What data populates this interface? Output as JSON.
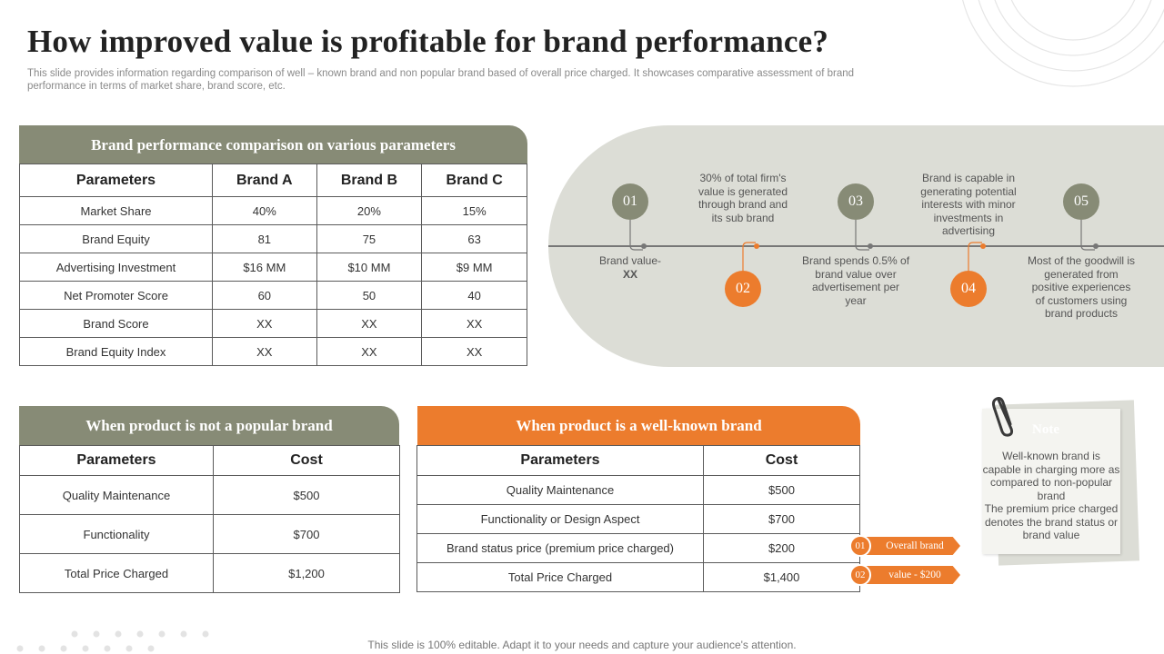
{
  "slide": {
    "title": "How improved value is profitable  for brand performance?",
    "subtitle": "This slide provides information regarding comparison of well – known brand and non popular brand based of overall price charged. It showcases comparative assessment of brand performance in terms of market share, brand score, etc.",
    "footer": "This slide is 100% editable. Adapt it to your needs and capture your audience's attention."
  },
  "comparison": {
    "header": "Brand performance comparison on various parameters",
    "columns": [
      "Parameters",
      "Brand A",
      "Brand B",
      "Brand C"
    ],
    "rows": [
      [
        "Market Share",
        "40%",
        "20%",
        "15%"
      ],
      [
        "Brand Equity",
        "81",
        "75",
        "63"
      ],
      [
        "Advertising Investment",
        "$16 MM",
        "$10 MM",
        "$9 MM"
      ],
      [
        "Net Promoter  Score",
        "60",
        "50",
        "40"
      ],
      [
        "Brand Score",
        "XX",
        "XX",
        "XX"
      ],
      [
        "Brand Equity Index",
        "XX",
        "XX",
        "XX"
      ]
    ]
  },
  "timeline": {
    "steps": [
      {
        "num": "01",
        "text": "Brand value- ",
        "bold": "XX"
      },
      {
        "num": "02",
        "text": "30% of total firm's value is generated through brand and its sub brand"
      },
      {
        "num": "03",
        "text": "Brand spends 0.5% of brand value over advertisement per year"
      },
      {
        "num": "04",
        "text": "Brand is capable in generating potential interests with minor investments in advertising"
      },
      {
        "num": "05",
        "text": "Most of the goodwill is generated from positive experiences of customers using brand products"
      }
    ],
    "colors": {
      "gray": "#878b76",
      "orange": "#ec7c2d",
      "band": "#dcddd6"
    }
  },
  "not_popular": {
    "header": "When product is not a popular brand",
    "columns": [
      "Parameters",
      "Cost"
    ],
    "rows": [
      [
        "Quality Maintenance",
        "$500"
      ],
      [
        "Functionality",
        "$700"
      ],
      [
        "Total Price Charged",
        "$1,200"
      ]
    ]
  },
  "well_known": {
    "header": "When product is a well-known brand",
    "columns": [
      "Parameters",
      "Cost"
    ],
    "rows": [
      [
        "Quality Maintenance",
        "$500"
      ],
      [
        "Functionality or Design Aspect",
        "$700"
      ],
      [
        "Brand status price (premium price charged)",
        "$200"
      ],
      [
        "Total Price Charged",
        "$1,400"
      ]
    ]
  },
  "tags": [
    {
      "num": "01",
      "label": "Overall brand"
    },
    {
      "num": "02",
      "label": "value - $200"
    }
  ],
  "note": {
    "title": "Note",
    "text": "Well-known brand is capable in charging more as compared to non-popular brand\nThe premium price charged denotes the brand status or brand value",
    "icon": "paperclip-icon"
  }
}
